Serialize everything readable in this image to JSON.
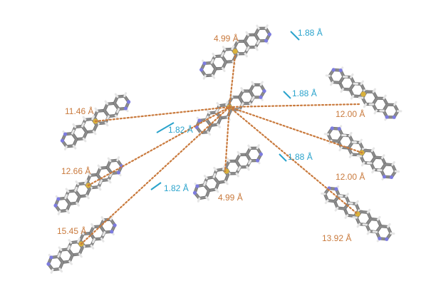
{
  "colors": {
    "carbon": "#8c8c8c",
    "carbon_dark": "#6e6e6e",
    "hydrogen": "#e6e6e6",
    "nitrogen": "#7d7ce0",
    "sulfur": "#d9b13c",
    "contact_distance": "#c97a3d",
    "hbond": "#2aa3cc"
  },
  "contacts": [
    {
      "id": "d1",
      "label": "4.99 Å",
      "kind": "distance"
    },
    {
      "id": "d2",
      "label": "11.46 Å",
      "kind": "distance"
    },
    {
      "id": "d3",
      "label": "12.00 Å",
      "kind": "distance"
    },
    {
      "id": "d4",
      "label": "12.66 Å",
      "kind": "distance"
    },
    {
      "id": "d5",
      "label": "12.00 Å",
      "kind": "distance"
    },
    {
      "id": "d6",
      "label": "4.99 Å",
      "kind": "distance"
    },
    {
      "id": "d7",
      "label": "15.45 Å",
      "kind": "distance"
    },
    {
      "id": "d8",
      "label": "13.92 Å",
      "kind": "distance"
    },
    {
      "id": "h1",
      "label": "1.88 Å",
      "kind": "hbond"
    },
    {
      "id": "h2",
      "label": "1.88 Å",
      "kind": "hbond"
    },
    {
      "id": "h3",
      "label": "1.82 Å",
      "kind": "hbond"
    },
    {
      "id": "h4",
      "label": "1.88 Å",
      "kind": "hbond"
    },
    {
      "id": "h5",
      "label": "1.82 Å",
      "kind": "hbond"
    }
  ]
}
